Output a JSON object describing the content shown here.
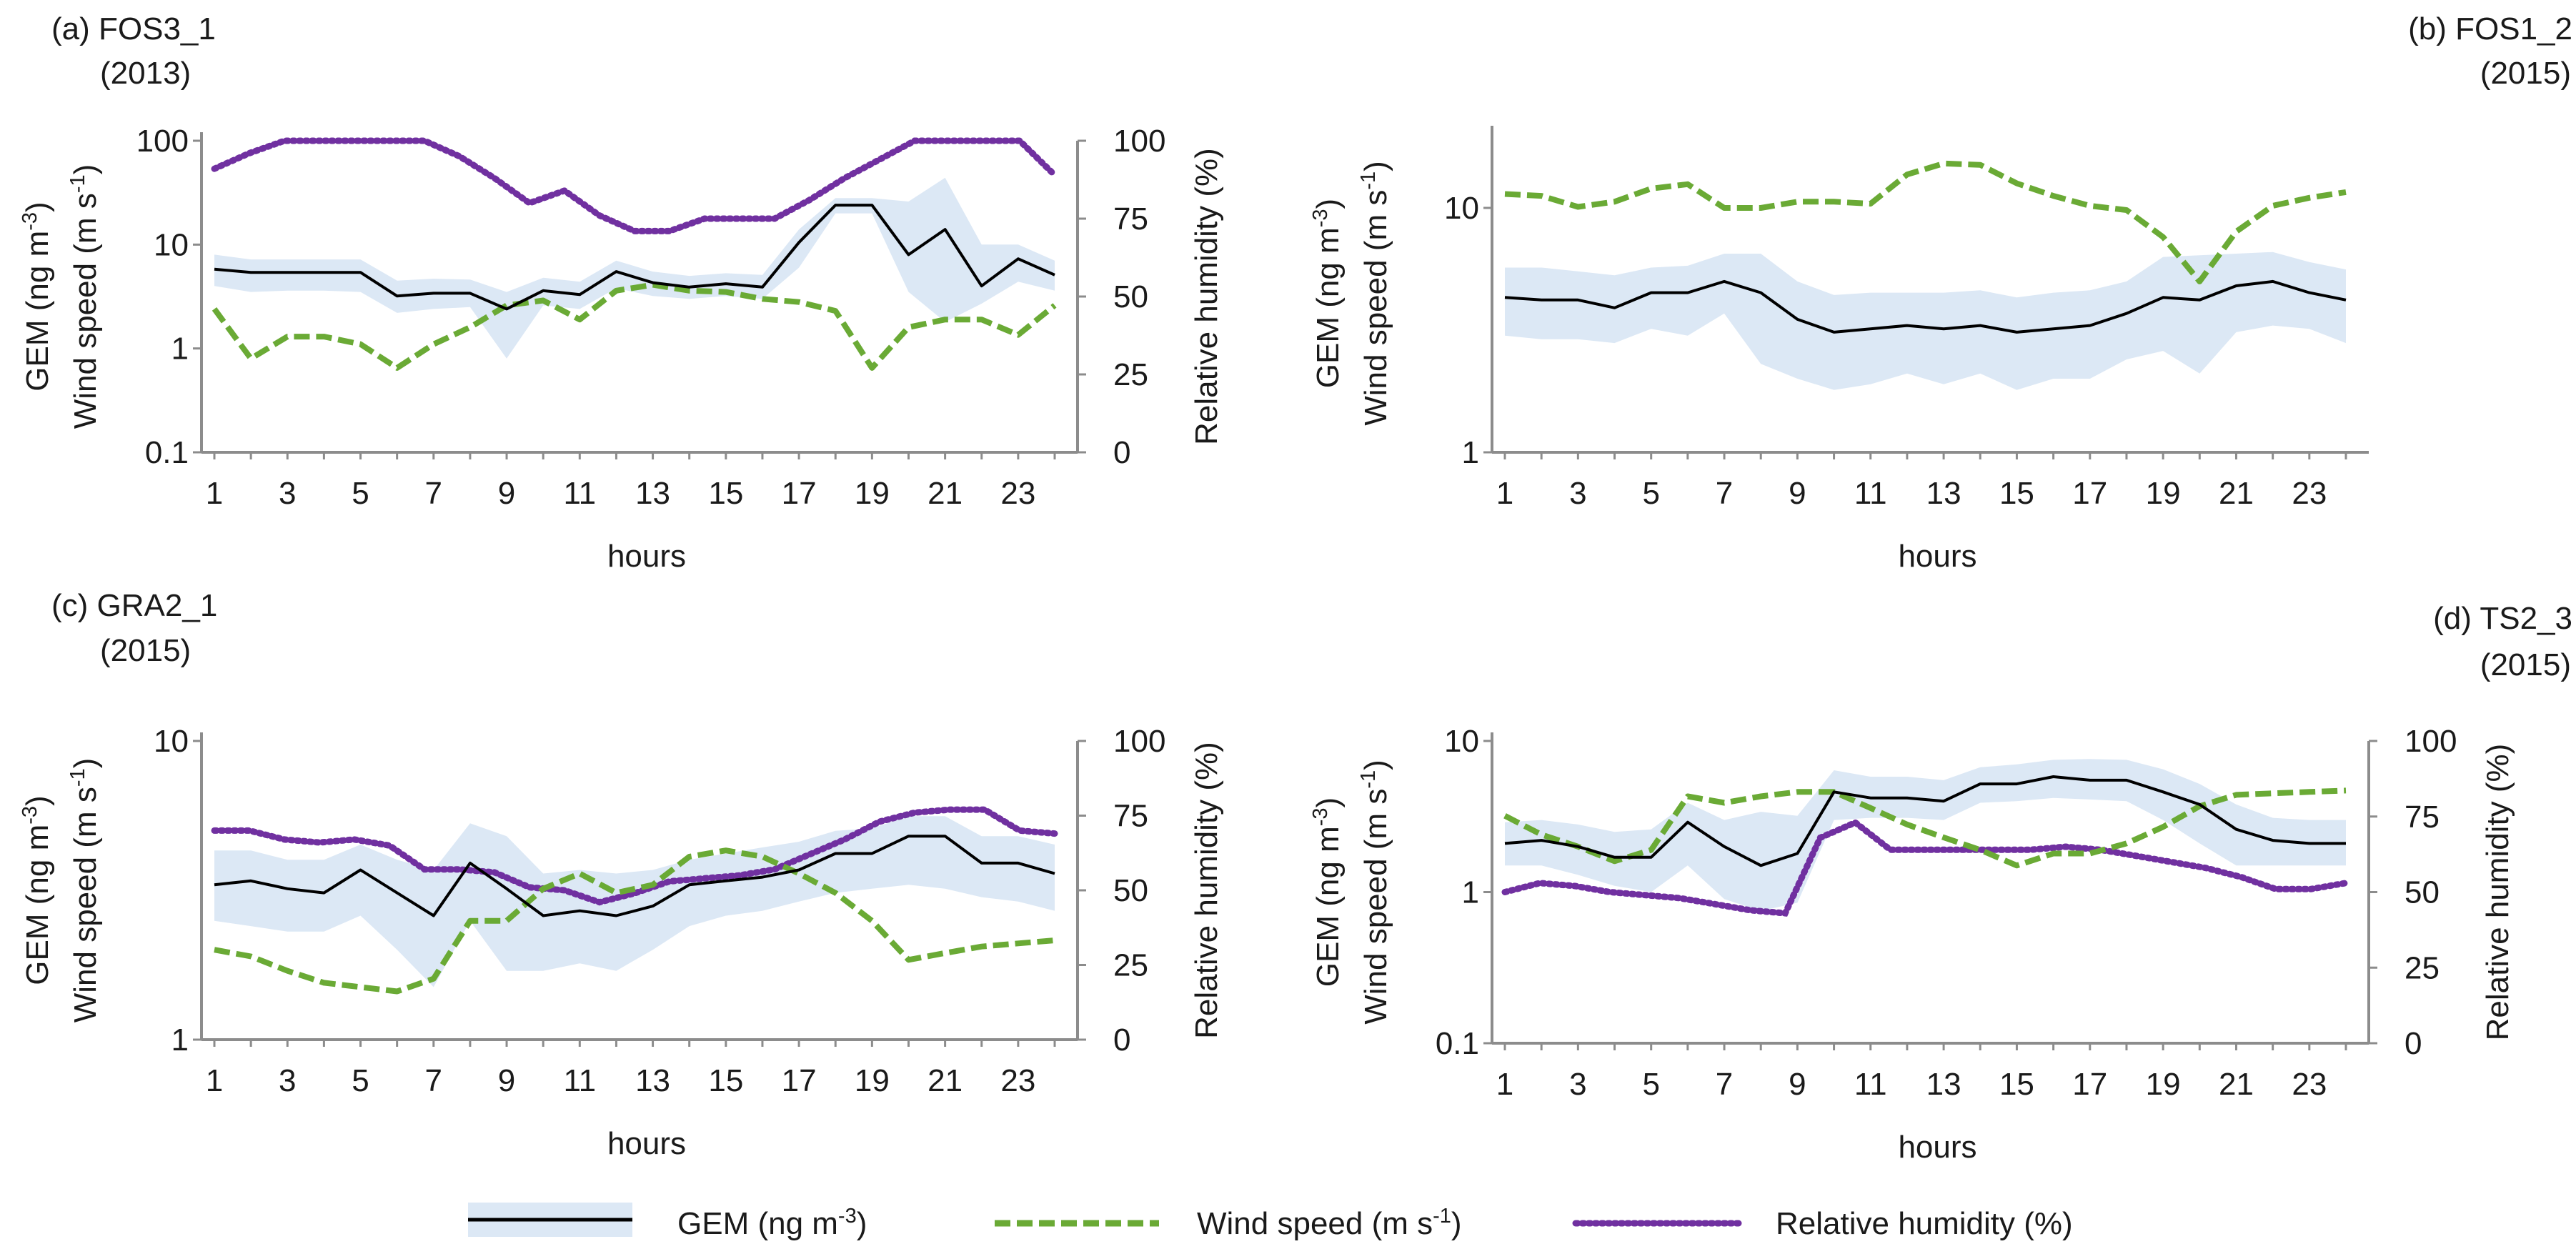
{
  "colors": {
    "band": "#dce8f5",
    "gem": "#000000",
    "wind": "#6aaa35",
    "rh": "#7030a0",
    "axis": "#8c8c8c"
  },
  "legend": {
    "gem": {
      "main": "GEM (ng m",
      "sup": "-3",
      "close": ")"
    },
    "wind": {
      "main": "Wind speed (m s",
      "sup": "-1",
      "close": ")"
    },
    "rh": "Relative humidity (%)"
  },
  "chart_data": [
    {
      "type": "line",
      "panel": "(a)",
      "title": "FOS3_1",
      "subtitle": "(2013)",
      "xlabel": "hours",
      "ylabel": {
        "line1": {
          "main": "GEM (ng m",
          "sup": "-3",
          "close": ")"
        },
        "line2": {
          "main": "Wind speed (m s",
          "sup": "-1",
          "close": ")"
        }
      },
      "y_scale": "log",
      "ylim": [
        0.1,
        100
      ],
      "y_ticks": [
        "100",
        "10",
        "1",
        "0.1"
      ],
      "y_tick_values": [
        100,
        10,
        1,
        0.1
      ],
      "y2label": "Relative humidity (%)",
      "y2lim": [
        0,
        100
      ],
      "y2_ticks": [
        "100",
        "75",
        "50",
        "25",
        "0"
      ],
      "y2_tick_values": [
        100,
        75,
        50,
        25,
        0
      ],
      "x_ticks": [
        "1",
        "3",
        "5",
        "7",
        "9",
        "11",
        "13",
        "15",
        "17",
        "19",
        "21",
        "23"
      ],
      "hours": [
        1,
        2,
        3,
        4,
        5,
        6,
        7,
        8,
        9,
        10,
        11,
        12,
        13,
        14,
        15,
        16,
        17,
        18,
        19,
        20,
        21,
        22,
        23,
        24
      ],
      "gem": [
        5.8,
        5.4,
        5.4,
        5.4,
        5.4,
        3.2,
        3.4,
        3.4,
        2.4,
        3.6,
        3.3,
        5.5,
        4.3,
        3.9,
        4.2,
        3.9,
        10.5,
        24,
        24,
        8,
        14,
        4,
        7.3,
        5.1
      ],
      "gem_low": [
        4.0,
        3.5,
        3.6,
        3.6,
        3.5,
        2.2,
        2.4,
        2.5,
        0.8,
        2.6,
        2.4,
        3.8,
        3.2,
        3.0,
        3.2,
        3.0,
        6,
        20,
        20,
        3.5,
        1.8,
        2.7,
        4.4,
        3.6
      ],
      "gem_high": [
        8.0,
        7.2,
        7.2,
        7.2,
        7.2,
        4.5,
        4.7,
        4.6,
        3.5,
        4.8,
        4.4,
        7.0,
        5.5,
        5.0,
        5.3,
        5.1,
        14,
        28,
        28,
        26,
        44,
        10,
        10,
        7.0
      ],
      "wind": [
        2.4,
        0.8,
        1.3,
        1.3,
        1.1,
        0.65,
        1.1,
        1.6,
        2.6,
        2.9,
        1.9,
        3.6,
        4.1,
        3.6,
        3.5,
        3.0,
        2.8,
        2.3,
        0.65,
        1.6,
        1.9,
        1.9,
        1.35,
        2.6
      ],
      "rh": [
        91,
        96,
        100,
        100,
        100,
        100,
        100,
        95,
        88,
        80,
        84,
        76,
        71,
        71,
        75,
        75,
        75,
        81,
        88,
        94,
        100,
        100,
        100,
        100,
        89
      ]
    },
    {
      "type": "line",
      "panel": "(b)",
      "title": "FOS1_2",
      "subtitle": "(2015)",
      "xlabel": "hours",
      "ylabel": {
        "line1": {
          "main": "GEM (ng m",
          "sup": "-3",
          "close": ")"
        },
        "line2": {
          "main": "Wind speed (m s",
          "sup": "-1",
          "close": ")"
        }
      },
      "y_scale": "log",
      "ylim": [
        1,
        20
      ],
      "y_ticks": [
        "10",
        "1"
      ],
      "y_tick_values": [
        10,
        1
      ],
      "x_ticks": [
        "1",
        "3",
        "5",
        "7",
        "9",
        "11",
        "13",
        "15",
        "17",
        "19",
        "21",
        "23"
      ],
      "hours": [
        1,
        2,
        3,
        4,
        5,
        6,
        7,
        8,
        9,
        10,
        11,
        12,
        13,
        14,
        15,
        16,
        17,
        18,
        19,
        20,
        21,
        22,
        23,
        24
      ],
      "gem": [
        4.3,
        4.2,
        4.2,
        3.9,
        4.5,
        4.5,
        5.0,
        4.5,
        3.5,
        3.1,
        3.2,
        3.3,
        3.2,
        3.3,
        3.1,
        3.2,
        3.3,
        3.7,
        4.3,
        4.2,
        4.8,
        5.0,
        4.5,
        4.2
      ],
      "gem_low": [
        3.0,
        2.9,
        2.9,
        2.8,
        3.2,
        3.0,
        3.7,
        2.3,
        2.0,
        1.8,
        1.9,
        2.1,
        1.9,
        2.1,
        1.8,
        2.0,
        2.0,
        2.4,
        2.6,
        2.1,
        3.1,
        3.3,
        3.2,
        2.8
      ],
      "gem_high": [
        5.7,
        5.7,
        5.5,
        5.3,
        5.7,
        5.8,
        6.5,
        6.5,
        5.0,
        4.4,
        4.5,
        4.5,
        4.5,
        4.6,
        4.3,
        4.5,
        4.6,
        5.0,
        6.3,
        6.4,
        6.5,
        6.6,
        6.0,
        5.6
      ],
      "wind": [
        11.4,
        11.2,
        10.1,
        10.6,
        12.0,
        12.5,
        10.0,
        10.0,
        10.6,
        10.6,
        10.4,
        13.7,
        15.2,
        15.0,
        12.6,
        11.2,
        10.2,
        9.8,
        7.6,
        5.0,
        8.0,
        10.2,
        11.0,
        11.6
      ]
    },
    {
      "type": "line",
      "panel": "(c)",
      "title": "GRA2_1",
      "subtitle": "(2015)",
      "xlabel": "hours",
      "ylabel": {
        "line1": {
          "main": "GEM (ng m",
          "sup": "-3",
          "close": ")"
        },
        "line2": {
          "main": "Wind speed (m s",
          "sup": "-1",
          "close": ")"
        }
      },
      "y_scale": "log",
      "ylim": [
        1,
        10
      ],
      "y_ticks": [
        "10",
        "1"
      ],
      "y_tick_values": [
        10,
        1
      ],
      "y2label": "Relative humidity (%)",
      "y2lim": [
        0,
        100
      ],
      "y2_ticks": [
        "100",
        "75",
        "50",
        "25",
        "0"
      ],
      "y2_tick_values": [
        100,
        75,
        50,
        25,
        0
      ],
      "x_ticks": [
        "1",
        "3",
        "5",
        "7",
        "9",
        "11",
        "13",
        "15",
        "17",
        "19",
        "21",
        "23"
      ],
      "hours": [
        1,
        2,
        3,
        4,
        5,
        6,
        7,
        8,
        9,
        10,
        11,
        12,
        13,
        14,
        15,
        16,
        17,
        18,
        19,
        20,
        21,
        22,
        23,
        24
      ],
      "gem": [
        3.3,
        3.4,
        3.2,
        3.1,
        3.7,
        3.1,
        2.6,
        3.9,
        3.2,
        2.6,
        2.7,
        2.6,
        2.8,
        3.3,
        3.4,
        3.5,
        3.7,
        4.2,
        4.2,
        4.8,
        4.8,
        3.9,
        3.9,
        3.6
      ],
      "gem_low": [
        2.5,
        2.4,
        2.3,
        2.3,
        2.6,
        2.0,
        1.5,
        2.5,
        1.7,
        1.7,
        1.8,
        1.7,
        2.0,
        2.4,
        2.6,
        2.7,
        2.9,
        3.1,
        3.2,
        3.3,
        3.2,
        3.0,
        2.9,
        2.7
      ],
      "gem_high": [
        4.3,
        4.3,
        4.0,
        4.0,
        4.5,
        4.0,
        3.7,
        5.3,
        4.8,
        3.6,
        3.7,
        3.6,
        3.7,
        4.0,
        4.2,
        4.4,
        4.6,
        5.0,
        5.1,
        5.6,
        5.6,
        4.8,
        4.8,
        4.5
      ],
      "wind": [
        2.0,
        1.9,
        1.7,
        1.55,
        1.5,
        1.45,
        1.6,
        2.5,
        2.5,
        3.2,
        3.6,
        3.1,
        3.3,
        4.1,
        4.3,
        4.1,
        3.6,
        3.1,
        2.5,
        1.85,
        1.95,
        2.05,
        2.1,
        2.15
      ],
      "rh": [
        70,
        70,
        67,
        66,
        67,
        65,
        57,
        57,
        56,
        51,
        50,
        46,
        49,
        53,
        54,
        55,
        57,
        62,
        67,
        73,
        76,
        77,
        77,
        70,
        69
      ]
    },
    {
      "type": "line",
      "panel": "(d)",
      "title": "TS2_3",
      "subtitle": "(2015)",
      "xlabel": "hours",
      "ylabel": {
        "line1": {
          "main": "GEM (ng m",
          "sup": "-3",
          "close": ")"
        },
        "line2": {
          "main": "Wind speed (m s",
          "sup": "-1",
          "close": ")"
        }
      },
      "y_scale": "log",
      "ylim": [
        0.1,
        10
      ],
      "y_ticks": [
        "10",
        "1",
        "0.1"
      ],
      "y_tick_values": [
        10,
        1,
        0.1
      ],
      "y2label": "Relative humidity (%)",
      "y2lim": [
        0,
        100
      ],
      "y2_ticks": [
        "100",
        "75",
        "50",
        "25",
        "0"
      ],
      "y2_tick_values": [
        100,
        75,
        50,
        25,
        0
      ],
      "x_ticks": [
        "1",
        "3",
        "5",
        "7",
        "9",
        "11",
        "13",
        "15",
        "17",
        "19",
        "21",
        "23"
      ],
      "hours": [
        1,
        2,
        3,
        4,
        5,
        6,
        7,
        8,
        9,
        10,
        11,
        12,
        13,
        14,
        15,
        16,
        17,
        18,
        19,
        20,
        21,
        22,
        23,
        24
      ],
      "gem": [
        2.1,
        2.2,
        2.0,
        1.7,
        1.7,
        2.9,
        2.0,
        1.5,
        1.8,
        4.6,
        4.2,
        4.2,
        4.0,
        5.2,
        5.2,
        5.8,
        5.5,
        5.5,
        4.6,
        3.8,
        2.6,
        2.2,
        2.1,
        2.1
      ],
      "gem_low": [
        1.5,
        1.5,
        1.3,
        1.1,
        1.0,
        1.5,
        0.9,
        0.75,
        0.85,
        3.0,
        3.1,
        3.1,
        3.0,
        3.9,
        4.0,
        4.2,
        4.1,
        4.0,
        3.0,
        2.1,
        1.5,
        1.5,
        1.5,
        1.5
      ],
      "gem_high": [
        2.9,
        3.0,
        2.8,
        2.5,
        2.6,
        3.9,
        3.0,
        3.4,
        3.2,
        6.4,
        5.8,
        5.8,
        5.5,
        6.7,
        7.0,
        7.5,
        7.6,
        7.5,
        6.5,
        5.2,
        3.8,
        3.1,
        3.0,
        3.0
      ],
      "wind": [
        3.2,
        2.4,
        2.0,
        1.6,
        1.9,
        4.3,
        3.9,
        4.3,
        4.6,
        4.6,
        3.6,
        2.8,
        2.3,
        1.9,
        1.5,
        1.8,
        1.8,
        2.1,
        2.7,
        3.7,
        4.4,
        4.5,
        4.6,
        4.7
      ],
      "rh": [
        50,
        53,
        52,
        50,
        49,
        48,
        46,
        44,
        43,
        68,
        73,
        64,
        64,
        64,
        64,
        64,
        65,
        64,
        62,
        60,
        58,
        55,
        51,
        51,
        53
      ]
    }
  ]
}
